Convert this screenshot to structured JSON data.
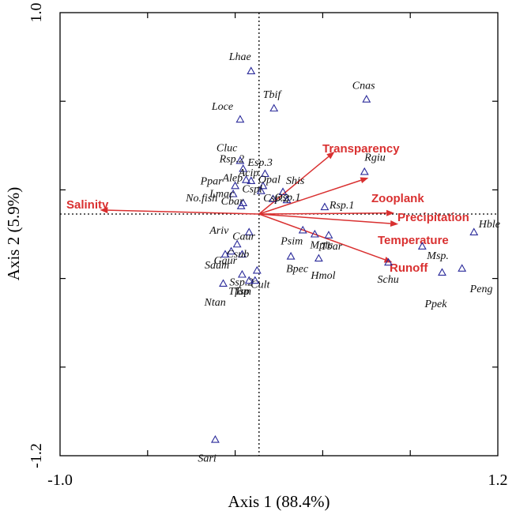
{
  "chart_data": {
    "type": "scatter",
    "title": "",
    "xlabel": "Axis 1 (88.4%)",
    "ylabel": "Axis 2 (5.9%)",
    "xlim": [
      -1.0,
      1.2
    ],
    "ylim": [
      -1.2,
      1.0
    ],
    "x_tick_labels": [
      "-1.0",
      "1.2"
    ],
    "y_tick_labels": [
      "1.0",
      "-1.2"
    ],
    "grid": false,
    "zero_lines": true,
    "colors": {
      "species": "#2a2a9a",
      "env": "#d93030",
      "text": "#111111"
    },
    "species": [
      {
        "name": "Lhae",
        "x": -0.04,
        "y": 0.71
      },
      {
        "name": "Tbif",
        "x": 0.075,
        "y": 0.525
      },
      {
        "name": "Cnas",
        "x": 0.54,
        "y": 0.57
      },
      {
        "name": "Loce",
        "x": -0.095,
        "y": 0.47
      },
      {
        "name": "Cluc",
        "x": -0.095,
        "y": 0.265
      },
      {
        "name": "Rsp.2",
        "x": -0.08,
        "y": 0.225
      },
      {
        "name": "Esp.3",
        "x": 0.03,
        "y": 0.2
      },
      {
        "name": "Alep",
        "x": -0.065,
        "y": 0.17
      },
      {
        "name": "Acip",
        "x": -0.04,
        "y": 0.165
      },
      {
        "name": "Opal",
        "x": 0.02,
        "y": 0.14
      },
      {
        "name": "Cspl",
        "x": 0.01,
        "y": 0.115
      },
      {
        "name": "Rgiu",
        "x": 0.53,
        "y": 0.21
      },
      {
        "name": "Ppar",
        "x": -0.12,
        "y": 0.14
      },
      {
        "name": "Shis",
        "x": 0.12,
        "y": 0.11
      },
      {
        "name": "Osp.1",
        "x": 0.07,
        "y": 0.075
      },
      {
        "name": "Csp.2",
        "x": 0.14,
        "y": 0.07
      },
      {
        "name": "Lmac",
        "x": -0.13,
        "y": 0.1
      },
      {
        "name": "Cbar",
        "x": -0.08,
        "y": 0.055
      },
      {
        "name": "Rsp.1",
        "x": 0.33,
        "y": 0.035
      },
      {
        "name": "No.fish",
        "x": -0.09,
        "y": 0.04
      },
      {
        "name": "Hble",
        "x": 1.08,
        "y": -0.09
      },
      {
        "name": "Ariv",
        "x": -0.05,
        "y": -0.09
      },
      {
        "name": "Mpic",
        "x": 0.28,
        "y": -0.1
      },
      {
        "name": "Tbar",
        "x": 0.35,
        "y": -0.105
      },
      {
        "name": "Psim",
        "x": 0.22,
        "y": -0.08
      },
      {
        "name": "Msp.",
        "x": 0.82,
        "y": -0.16
      },
      {
        "name": "Caur",
        "x": -0.11,
        "y": -0.15
      },
      {
        "name": "Gaur",
        "x": -0.14,
        "y": -0.185
      },
      {
        "name": "Csub",
        "x": -0.085,
        "y": -0.2
      },
      {
        "name": "Sdum",
        "x": -0.17,
        "y": -0.2
      },
      {
        "name": "Bpec",
        "x": 0.16,
        "y": -0.21
      },
      {
        "name": "Hmol",
        "x": 0.3,
        "y": -0.22
      },
      {
        "name": "Schu",
        "x": 0.65,
        "y": -0.24
      },
      {
        "name": "Peng",
        "x": 1.02,
        "y": -0.27
      },
      {
        "name": "Ppek",
        "x": 0.92,
        "y": -0.29
      },
      {
        "name": "Cult",
        "x": -0.01,
        "y": -0.28
      },
      {
        "name": "Ssp.2",
        "x": -0.085,
        "y": -0.3
      },
      {
        "name": "Tsp",
        "x": -0.02,
        "y": -0.33
      },
      {
        "name": "Tfam",
        "x": -0.05,
        "y": -0.33
      },
      {
        "name": "Ntan",
        "x": -0.18,
        "y": -0.345
      },
      {
        "name": "Sari",
        "x": -0.22,
        "y": -1.12
      }
    ],
    "env_vectors": [
      {
        "name": "Transparency",
        "x": 0.38,
        "y": 0.31
      },
      {
        "name": "Zooplank",
        "x": 0.55,
        "y": 0.18
      },
      {
        "name": "Precipitation",
        "x": 0.68,
        "y": 0.005
      },
      {
        "name": "Temperature",
        "x": 0.7,
        "y": -0.05
      },
      {
        "name": "Runoff",
        "x": 0.67,
        "y": -0.24
      },
      {
        "name": "Salinity",
        "x": -0.8,
        "y": 0.02
      }
    ]
  }
}
